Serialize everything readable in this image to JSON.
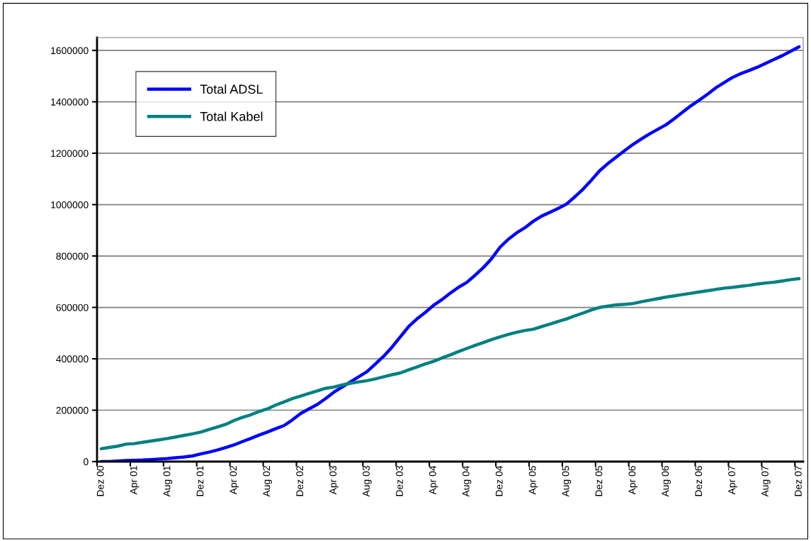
{
  "chart_data": {
    "type": "line",
    "categories": [
      "Dez 00",
      null,
      null,
      null,
      "Apr 01",
      null,
      null,
      null,
      "Aug 01",
      null,
      null,
      null,
      "Dez 01",
      null,
      null,
      null,
      "Apr 02",
      null,
      null,
      null,
      "Aug 02",
      null,
      null,
      null,
      "Dez 02",
      null,
      null,
      null,
      "Apr 03",
      null,
      null,
      null,
      "Aug 03",
      null,
      null,
      null,
      "Dez 03",
      null,
      null,
      null,
      "Apr 04",
      null,
      null,
      null,
      "Aug 04",
      null,
      null,
      null,
      "Dez 04",
      null,
      null,
      null,
      "Apr 05",
      null,
      null,
      null,
      "Aug 05",
      null,
      null,
      null,
      "Dez 05",
      null,
      null,
      null,
      "Apr 06",
      null,
      null,
      null,
      "Aug 06",
      null,
      null,
      null,
      "Dez 06",
      null,
      null,
      null,
      "Apr 07",
      null,
      null,
      null,
      "Aug 07",
      null,
      null,
      null,
      "Dez 07"
    ],
    "series": [
      {
        "name": "Total ADSL",
        "color": "#0000ff",
        "values": [
          0,
          0,
          2000,
          4000,
          5000,
          6000,
          8000,
          10000,
          12000,
          15000,
          18000,
          22000,
          30000,
          37000,
          45000,
          55000,
          65000,
          78000,
          90000,
          103000,
          115000,
          128000,
          140000,
          162000,
          187000,
          205000,
          222000,
          245000,
          270000,
          290000,
          310000,
          330000,
          350000,
          380000,
          410000,
          445000,
          485000,
          525000,
          555000,
          580000,
          608000,
          630000,
          655000,
          678000,
          697000,
          725000,
          755000,
          790000,
          834000,
          865000,
          890000,
          910000,
          935000,
          955000,
          970000,
          985000,
          1002000,
          1030000,
          1060000,
          1095000,
          1132000,
          1160000,
          1185000,
          1210000,
          1234000,
          1255000,
          1275000,
          1293000,
          1311000,
          1335000,
          1360000,
          1385000,
          1407000,
          1430000,
          1455000,
          1475000,
          1495000,
          1510000,
          1522000,
          1535000,
          1550000,
          1565000,
          1580000,
          1597000,
          1614000
        ]
      },
      {
        "name": "Total Kabel",
        "color": "#008080",
        "values": [
          50000,
          55000,
          60000,
          68000,
          70000,
          75000,
          80000,
          85000,
          90000,
          96000,
          102000,
          108000,
          115000,
          125000,
          135000,
          145000,
          160000,
          172000,
          182000,
          195000,
          205000,
          220000,
          232000,
          245000,
          255000,
          265000,
          275000,
          285000,
          290000,
          298000,
          305000,
          310000,
          315000,
          322000,
          330000,
          338000,
          345000,
          357000,
          368000,
          380000,
          390000,
          403000,
          415000,
          428000,
          440000,
          452000,
          463000,
          475000,
          485000,
          495000,
          503000,
          510000,
          515000,
          525000,
          535000,
          545000,
          555000,
          567000,
          578000,
          590000,
          600000,
          605000,
          610000,
          612000,
          615000,
          622000,
          628000,
          634000,
          640000,
          645000,
          650000,
          655000,
          660000,
          665000,
          670000,
          675000,
          678000,
          682000,
          686000,
          691000,
          695000,
          698000,
          703000,
          708000,
          712000
        ]
      }
    ],
    "ylim": [
      0,
      1650000
    ],
    "yticks": [
      0,
      200000,
      400000,
      600000,
      800000,
      1000000,
      1200000,
      1400000,
      1600000
    ],
    "grid": "y",
    "legend": "top left"
  }
}
